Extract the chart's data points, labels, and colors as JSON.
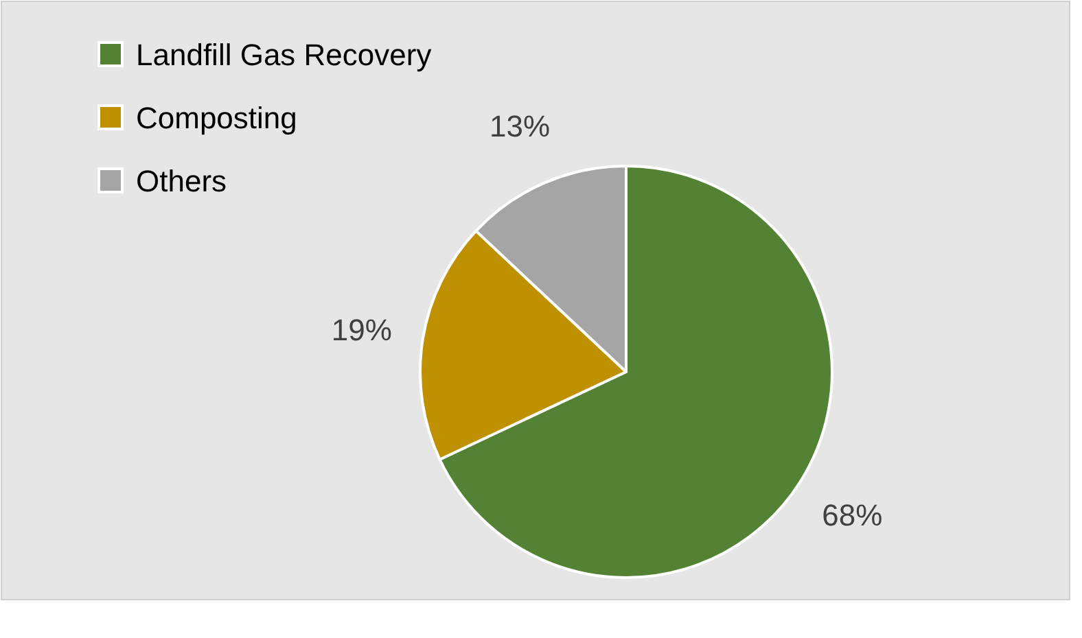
{
  "chart_data": {
    "type": "pie",
    "categories": [
      "Landfill Gas Recovery",
      "Composting",
      "Others"
    ],
    "values": [
      68,
      19,
      13
    ],
    "colors": [
      "#548235",
      "#bf9000",
      "#a5a5a5"
    ],
    "value_labels": [
      "68%",
      "19%",
      "13%"
    ],
    "legend": "top left"
  }
}
